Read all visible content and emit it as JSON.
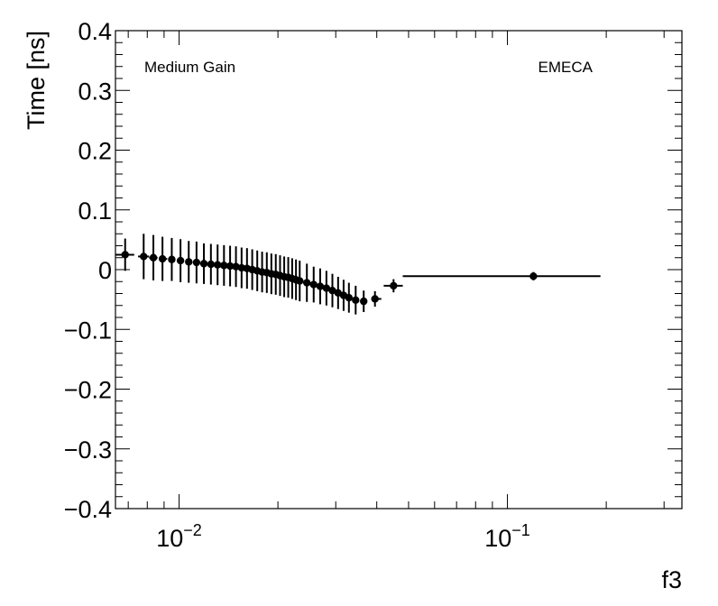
{
  "chart_data": {
    "type": "scatter",
    "title": "",
    "xlabel": "f3",
    "ylabel": "Time [ns]",
    "x_scale": "log",
    "xlim": [
      0.0064,
      0.34
    ],
    "ylim": [
      -0.4,
      0.4
    ],
    "grid": false,
    "annotations": [
      {
        "text": "Medium Gain",
        "position": "top-left"
      },
      {
        "text": "EMECA",
        "position": "top-right"
      }
    ],
    "y_ticks": [
      {
        "value": 0.4,
        "label": "0.4"
      },
      {
        "value": 0.3,
        "label": "0.3"
      },
      {
        "value": 0.2,
        "label": "0.2"
      },
      {
        "value": 0.1,
        "label": "0.1"
      },
      {
        "value": 0.0,
        "label": "0"
      },
      {
        "value": -0.1,
        "label": "−0.1"
      },
      {
        "value": -0.2,
        "label": "−0.2"
      },
      {
        "value": -0.3,
        "label": "−0.3"
      },
      {
        "value": -0.4,
        "label": "−0.4"
      }
    ],
    "x_ticks": [
      {
        "value": 0.01,
        "base": "10",
        "exp": "−2"
      },
      {
        "value": 0.1,
        "base": "10",
        "exp": "−1"
      }
    ],
    "points": [
      {
        "x": 0.00685,
        "y": 0.025,
        "xlo": 0.0064,
        "xhi": 0.0073,
        "err": 0.027
      },
      {
        "x": 0.0078,
        "y": 0.022,
        "xlo": 0.0075,
        "xhi": 0.0081,
        "err": 0.038
      },
      {
        "x": 0.00835,
        "y": 0.02,
        "xlo": 0.0081,
        "xhi": 0.0086,
        "err": 0.038
      },
      {
        "x": 0.0089,
        "y": 0.018,
        "xlo": 0.0087,
        "xhi": 0.0092,
        "err": 0.037
      },
      {
        "x": 0.0095,
        "y": 0.017,
        "xlo": 0.0093,
        "xhi": 0.0097,
        "err": 0.036
      },
      {
        "x": 0.0101,
        "y": 0.015,
        "xlo": 0.0099,
        "xhi": 0.0103,
        "err": 0.036
      },
      {
        "x": 0.0107,
        "y": 0.013,
        "xlo": 0.0105,
        "xhi": 0.0109,
        "err": 0.035
      },
      {
        "x": 0.0113,
        "y": 0.012,
        "xlo": 0.0111,
        "xhi": 0.0115,
        "err": 0.035
      },
      {
        "x": 0.0119,
        "y": 0.01,
        "xlo": 0.0117,
        "xhi": 0.0121,
        "err": 0.034
      },
      {
        "x": 0.0125,
        "y": 0.009,
        "xlo": 0.0123,
        "xhi": 0.0127,
        "err": 0.034
      },
      {
        "x": 0.0131,
        "y": 0.008,
        "xlo": 0.0129,
        "xhi": 0.0133,
        "err": 0.034
      },
      {
        "x": 0.0137,
        "y": 0.007,
        "xlo": 0.0135,
        "xhi": 0.0139,
        "err": 0.034
      },
      {
        "x": 0.0143,
        "y": 0.006,
        "xlo": 0.0141,
        "xhi": 0.0145,
        "err": 0.034
      },
      {
        "x": 0.0149,
        "y": 0.005,
        "xlo": 0.0147,
        "xhi": 0.0151,
        "err": 0.034
      },
      {
        "x": 0.0155,
        "y": 0.003,
        "xlo": 0.0153,
        "xhi": 0.0157,
        "err": 0.034
      },
      {
        "x": 0.0161,
        "y": 0.002,
        "xlo": 0.0159,
        "xhi": 0.0163,
        "err": 0.034
      },
      {
        "x": 0.0167,
        "y": 0.0,
        "xlo": 0.0165,
        "xhi": 0.0169,
        "err": 0.034
      },
      {
        "x": 0.0173,
        "y": -0.002,
        "xlo": 0.0171,
        "xhi": 0.0175,
        "err": 0.034
      },
      {
        "x": 0.0179,
        "y": -0.004,
        "xlo": 0.0177,
        "xhi": 0.0181,
        "err": 0.034
      },
      {
        "x": 0.0185,
        "y": -0.005,
        "xlo": 0.0183,
        "xhi": 0.0187,
        "err": 0.034
      },
      {
        "x": 0.0191,
        "y": -0.007,
        "xlo": 0.0189,
        "xhi": 0.0193,
        "err": 0.034
      },
      {
        "x": 0.0197,
        "y": -0.008,
        "xlo": 0.0195,
        "xhi": 0.0199,
        "err": 0.034
      },
      {
        "x": 0.0203,
        "y": -0.01,
        "xlo": 0.0201,
        "xhi": 0.0205,
        "err": 0.034
      },
      {
        "x": 0.0209,
        "y": -0.012,
        "xlo": 0.0207,
        "xhi": 0.0211,
        "err": 0.034
      },
      {
        "x": 0.0215,
        "y": -0.013,
        "xlo": 0.0213,
        "xhi": 0.0217,
        "err": 0.034
      },
      {
        "x": 0.0221,
        "y": -0.015,
        "xlo": 0.0219,
        "xhi": 0.0223,
        "err": 0.034
      },
      {
        "x": 0.0227,
        "y": -0.017,
        "xlo": 0.0225,
        "xhi": 0.0229,
        "err": 0.034
      },
      {
        "x": 0.0233,
        "y": -0.019,
        "xlo": 0.0231,
        "xhi": 0.0235,
        "err": 0.034
      },
      {
        "x": 0.0245,
        "y": -0.022,
        "xlo": 0.0242,
        "xhi": 0.0248,
        "err": 0.032
      },
      {
        "x": 0.0257,
        "y": -0.025,
        "xlo": 0.0254,
        "xhi": 0.026,
        "err": 0.03
      },
      {
        "x": 0.0269,
        "y": -0.028,
        "xlo": 0.0266,
        "xhi": 0.0272,
        "err": 0.03
      },
      {
        "x": 0.0281,
        "y": -0.031,
        "xlo": 0.0278,
        "xhi": 0.0284,
        "err": 0.029
      },
      {
        "x": 0.0293,
        "y": -0.035,
        "xlo": 0.029,
        "xhi": 0.0296,
        "err": 0.028
      },
      {
        "x": 0.0305,
        "y": -0.039,
        "xlo": 0.0302,
        "xhi": 0.0308,
        "err": 0.027
      },
      {
        "x": 0.0317,
        "y": -0.043,
        "xlo": 0.0314,
        "xhi": 0.032,
        "err": 0.026
      },
      {
        "x": 0.0329,
        "y": -0.047,
        "xlo": 0.0326,
        "xhi": 0.0332,
        "err": 0.025
      },
      {
        "x": 0.0345,
        "y": -0.051,
        "xlo": 0.034,
        "xhi": 0.035,
        "err": 0.024
      },
      {
        "x": 0.0365,
        "y": -0.053,
        "xlo": 0.0358,
        "xhi": 0.0372,
        "err": 0.018
      },
      {
        "x": 0.0395,
        "y": -0.049,
        "xlo": 0.0385,
        "xhi": 0.0413,
        "err": 0.013
      },
      {
        "x": 0.045,
        "y": -0.027,
        "xlo": 0.042,
        "xhi": 0.048,
        "err": 0.011
      },
      {
        "x": 0.12,
        "y": -0.011,
        "xlo": 0.048,
        "xhi": 0.192,
        "err": 0.007
      }
    ]
  }
}
